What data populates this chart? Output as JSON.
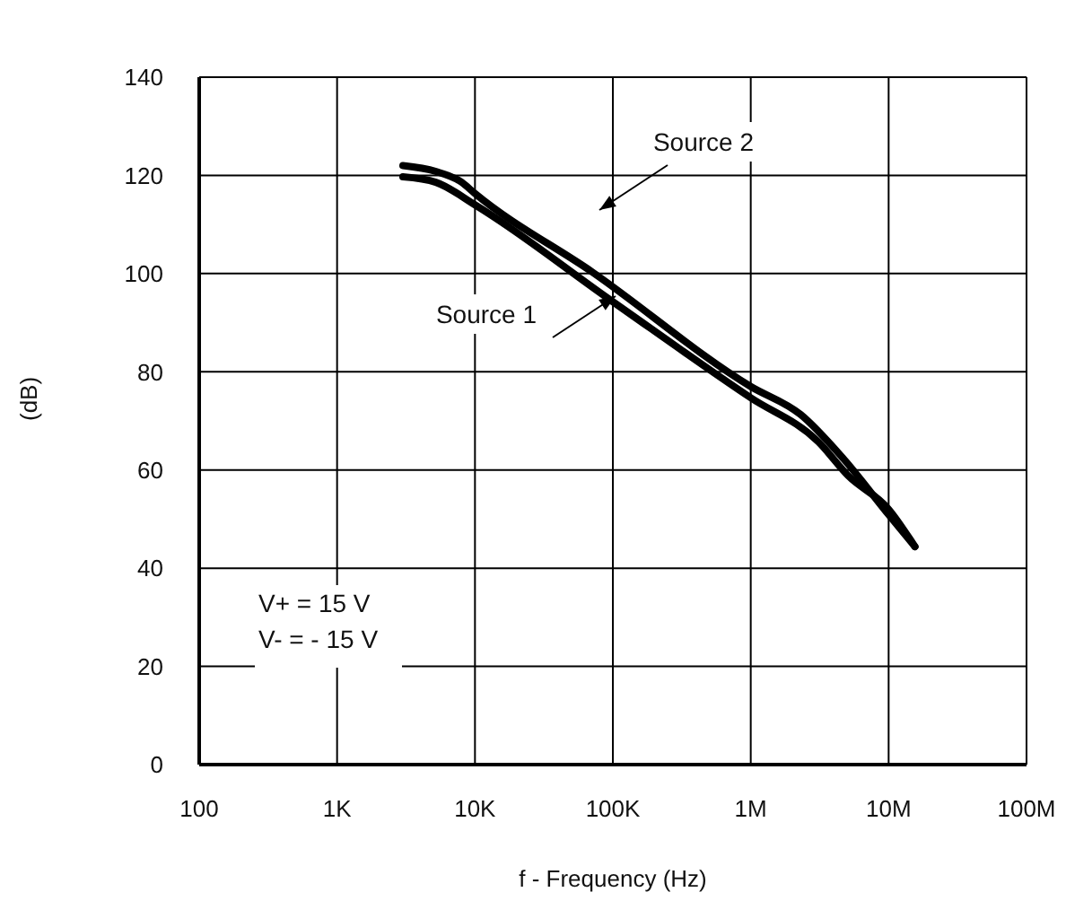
{
  "chart_data": {
    "type": "line",
    "xlabel": "f - Frequency (Hz)",
    "ylabel": "(dB)",
    "log": "x",
    "xlim": [
      100,
      100000000
    ],
    "xticks": [
      {
        "value": 100,
        "label": "100"
      },
      {
        "value": 1000,
        "label": "1K"
      },
      {
        "value": 10000,
        "label": "10K"
      },
      {
        "value": 100000,
        "label": "100K"
      },
      {
        "value": 1000000,
        "label": "1M"
      },
      {
        "value": 10000000,
        "label": "10M"
      },
      {
        "value": 100000000,
        "label": "100M"
      }
    ],
    "ylim": [
      0,
      140
    ],
    "yticks": [
      0,
      20,
      40,
      60,
      80,
      100,
      120,
      140
    ],
    "grid": true,
    "marker": "none",
    "line_style": "solid",
    "series": [
      {
        "name": "Source 1",
        "color": "#000000",
        "x": [
          3000,
          5200,
          10000,
          95000,
          1000000,
          3100000,
          5100000,
          10000000,
          15500000
        ],
        "values": [
          119.7,
          118.6,
          114,
          94.7,
          74.7,
          65.7,
          58.8,
          52,
          44.4
        ]
      },
      {
        "name": "Source 2",
        "color": "#000000",
        "x": [
          3000,
          5200,
          8000,
          10000,
          71000,
          1000000,
          2300000,
          4700000,
          10000000,
          15500000
        ],
        "values": [
          122,
          120.8,
          118.6,
          116.3,
          100.3,
          77,
          71.3,
          62.3,
          50.9,
          44.4
        ]
      }
    ],
    "annotations": [
      "V+ = 15 V",
      "V- = - 15 V"
    ]
  }
}
